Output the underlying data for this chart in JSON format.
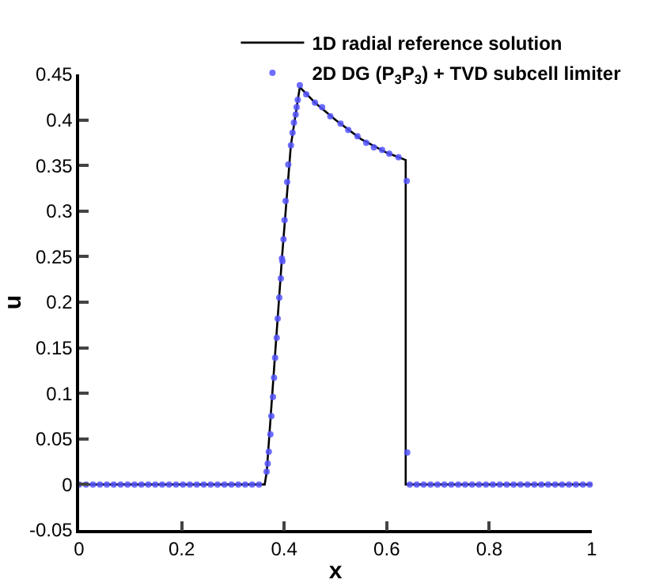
{
  "chart_data": {
    "type": "line",
    "xlabel": "x",
    "ylabel": "u",
    "xlim": [
      0,
      1
    ],
    "ylim": [
      -0.05,
      0.45
    ],
    "xticks": [
      0,
      0.2,
      0.4,
      0.6,
      0.8,
      1
    ],
    "yticks": [
      -0.05,
      0,
      0.05,
      0.1,
      0.15,
      0.2,
      0.25,
      0.3,
      0.35,
      0.4,
      0.45
    ],
    "grid": false,
    "legend": "top",
    "series": [
      {
        "name": "1D radial reference solution",
        "color": "#000000",
        "marker": "none",
        "line_style": "solid",
        "x": [
          0,
          0.362,
          0.366,
          0.3956,
          0.413,
          0.4305,
          0.46,
          0.5,
          0.55,
          0.6,
          0.637,
          0.637,
          1
        ],
        "values": [
          0,
          0,
          0.014,
          0.248,
          0.372,
          0.436,
          0.419,
          0.4,
          0.379,
          0.364,
          0.356,
          0,
          0
        ]
      },
      {
        "name": "2D DG (P$_{3}$P$_{3}$) + TVD subcell limiter",
        "type": "scatter",
        "color": "#5555ff",
        "marker": "circle",
        "x": [
          0,
          0.0135,
          0.027,
          0.0405,
          0.054,
          0.0675,
          0.081,
          0.0945,
          0.108,
          0.1215,
          0.135,
          0.1485,
          0.162,
          0.1755,
          0.189,
          0.2025,
          0.216,
          0.2295,
          0.243,
          0.2565,
          0.27,
          0.2835,
          0.297,
          0.3105,
          0.324,
          0.3375,
          0.351,
          0.3657,
          0.3679,
          0.37,
          0.3731,
          0.375,
          0.3781,
          0.3802,
          0.3823,
          0.3854,
          0.3873,
          0.3904,
          0.3935,
          0.3956,
          0.3966,
          0.3987,
          0.4008,
          0.4028,
          0.4058,
          0.408,
          0.4132,
          0.4163,
          0.419,
          0.4224,
          0.4243,
          0.4265,
          0.4305,
          0.443,
          0.46,
          0.474,
          0.49,
          0.51,
          0.525,
          0.543,
          0.56,
          0.575,
          0.591,
          0.605,
          0.623,
          0.639,
          0.64,
          0.645,
          0.6585,
          0.672,
          0.6855,
          0.699,
          0.7125,
          0.726,
          0.7395,
          0.753,
          0.7665,
          0.78,
          0.7935,
          0.807,
          0.8205,
          0.834,
          0.8475,
          0.861,
          0.8745,
          0.888,
          0.9015,
          0.915,
          0.9285,
          0.942,
          0.9555,
          0.969,
          0.9825,
          0.996
        ],
        "values": [
          0,
          0,
          0,
          0,
          0,
          0,
          0,
          0,
          0,
          0,
          0,
          0,
          0,
          0,
          0,
          0,
          0,
          0,
          0,
          0,
          0,
          0,
          0,
          0,
          0,
          0,
          0,
          0.014,
          0.023,
          0.036,
          0.055,
          0.075,
          0.096,
          0.117,
          0.139,
          0.161,
          0.182,
          0.205,
          0.226,
          0.248,
          0.245,
          0.269,
          0.29,
          0.311,
          0.332,
          0.351,
          0.372,
          0.386,
          0.397,
          0.406,
          0.414,
          0.422,
          0.438,
          0.428,
          0.419,
          0.414,
          0.404,
          0.396,
          0.389,
          0.382,
          0.375,
          0.37,
          0.367,
          0.363,
          0.359,
          0.333,
          0.035,
          0,
          0,
          0,
          0,
          0,
          0,
          0,
          0,
          0,
          0,
          0,
          0,
          0,
          0,
          0,
          0,
          0,
          0,
          0,
          0,
          0,
          0,
          0,
          0,
          0,
          0,
          0
        ]
      }
    ]
  }
}
